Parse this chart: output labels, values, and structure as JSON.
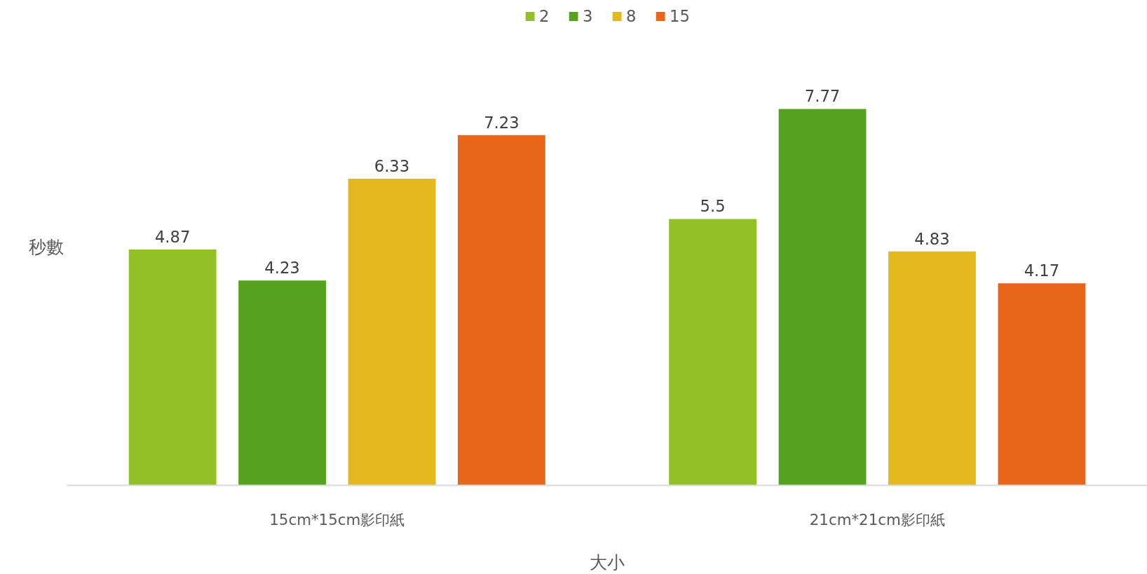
{
  "chart_data": {
    "type": "bar",
    "xlabel": "大小",
    "ylabel": "秒數",
    "categories": [
      "15cm*15cm影印紙",
      "21cm*21cm影印紙"
    ],
    "series": [
      {
        "name": "2",
        "color": "#92c026",
        "values": [
          4.87,
          5.5
        ]
      },
      {
        "name": "3",
        "color": "#56a21f",
        "values": [
          4.23,
          7.77
        ]
      },
      {
        "name": "8",
        "color": "#e4b91f",
        "values": [
          6.33,
          4.83
        ]
      },
      {
        "name": "15",
        "color": "#e8661a",
        "values": [
          7.23,
          4.17
        ]
      }
    ],
    "data_labels": true,
    "grid": false,
    "legend": "top"
  }
}
